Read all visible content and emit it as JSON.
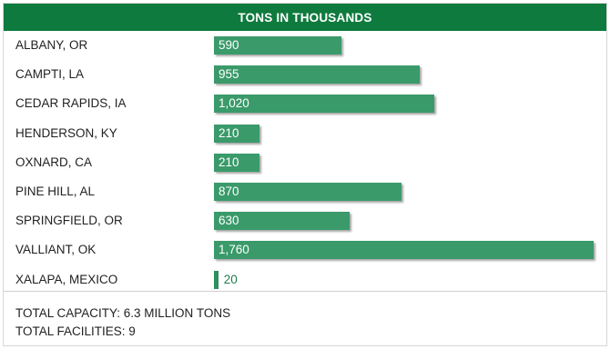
{
  "chart_data": {
    "type": "bar",
    "orientation": "horizontal",
    "title": "TONS IN THOUSANDS",
    "categories": [
      "ALBANY, OR",
      "CAMPTI, LA",
      "CEDAR RAPIDS, IA",
      "HENDERSON, KY",
      "OXNARD, CA",
      "PINE HILL, AL",
      "SPRINGFIELD, OR",
      "VALLIANT, OK",
      "XALAPA, MEXICO"
    ],
    "values": [
      590,
      955,
      1020,
      210,
      210,
      870,
      630,
      1760,
      20
    ],
    "value_labels": [
      "590",
      "955",
      "1,020",
      "210",
      "210",
      "870",
      "630",
      "1,760",
      "20"
    ],
    "xlim": [
      0,
      1760
    ],
    "grid": false,
    "legend": "none",
    "colors": {
      "header": "#0e7a3e",
      "bar": "#3a9a6a",
      "value_outside": "#1f7d4c"
    }
  },
  "footer": {
    "total_capacity": "TOTAL CAPACITY: 6.3 MILLION TONS",
    "total_facilities": "TOTAL FACILITIES: 9"
  }
}
